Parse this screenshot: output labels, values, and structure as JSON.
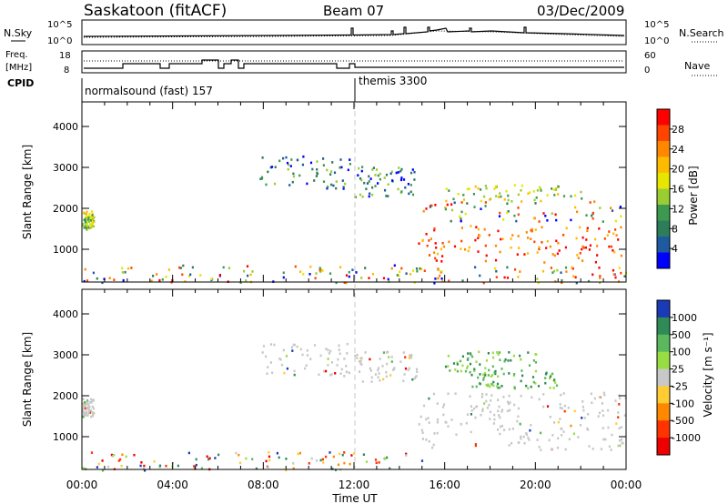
{
  "header": {
    "station": "Saskatoon (fitACF)",
    "beam": "Beam 07",
    "date": "03/Dec/2009"
  },
  "top_panels": {
    "nsky_label": "N.Sky",
    "nsearch_label": "N.Search",
    "nsky_ticks": [
      "10^5",
      "10^0"
    ],
    "nsearch_ticks": [
      "10^5",
      "10^0"
    ],
    "freq_label_1": "Freq.",
    "freq_label_2": "[MHz]",
    "freq_ticks": [
      "18",
      "8"
    ],
    "nave_label": "Nave",
    "nave_ticks": [
      "60",
      "0"
    ],
    "cpid_label": "CPID",
    "cpid_1": "normalsound (fast) 157",
    "cpid_2": "themis 3300"
  },
  "chart_data": [
    {
      "type": "heatmap",
      "name": "power",
      "ylabel": "Slant Range [km]",
      "ylim": [
        200,
        4600
      ],
      "y_ticks": [
        "4000",
        "3000",
        "2000",
        "1000"
      ],
      "xlabel": "Time UT",
      "x_ticks": [
        "00:00",
        "04:00",
        "08:00",
        "12:00",
        "16:00",
        "20:00",
        "00:00"
      ],
      "colorbar": {
        "label": "Power [dB]",
        "ticks": [
          "28",
          "24",
          "20",
          "16",
          "12",
          "8",
          "4"
        ],
        "colors": [
          "#ff0000",
          "#ff4400",
          "#ff8800",
          "#ffbb00",
          "#e6e600",
          "#9acd32",
          "#3d9950",
          "#2e7d5a",
          "#1e5aa0",
          "#0000ff"
        ]
      },
      "regions": [
        {
          "t0": 0.0,
          "t1": 0.5,
          "r0": 1500,
          "r1": 1950,
          "level": "mid"
        },
        {
          "t0": 0.0,
          "t1": 15.0,
          "r0": 200,
          "r1": 650,
          "level": "mixed"
        },
        {
          "t0": 7.8,
          "t1": 11.8,
          "r0": 2500,
          "r1": 3300,
          "level": "low"
        },
        {
          "t0": 12.0,
          "t1": 14.8,
          "r0": 2300,
          "r1": 3100,
          "level": "low"
        },
        {
          "t0": 14.8,
          "t1": 24.0,
          "r0": 700,
          "r1": 1600,
          "level": "high"
        },
        {
          "t0": 15.0,
          "t1": 24.0,
          "r0": 1700,
          "r1": 2200,
          "level": "mixed"
        },
        {
          "t0": 16.0,
          "t1": 22.0,
          "r0": 2200,
          "r1": 2600,
          "level": "mid"
        },
        {
          "t0": 14.5,
          "t1": 24.0,
          "r0": 200,
          "r1": 600,
          "level": "mixed"
        }
      ]
    },
    {
      "type": "heatmap",
      "name": "velocity",
      "ylabel": "Slant Range [km]",
      "ylim": [
        200,
        4600
      ],
      "y_ticks": [
        "4000",
        "3000",
        "2000",
        "1000"
      ],
      "xlabel": "Time UT",
      "x_ticks": [
        "00:00",
        "04:00",
        "08:00",
        "12:00",
        "16:00",
        "20:00",
        "00:00"
      ],
      "colorbar": {
        "label": "Velocity [m s⁻¹]",
        "ticks": [
          "1000",
          "500",
          "100",
          "25",
          "-25",
          "-100",
          "-500",
          "-1000"
        ],
        "colors": [
          "#1a3ab8",
          "#2e8b57",
          "#5cb85c",
          "#99dd44",
          "#c8c8c8",
          "#ffcc33",
          "#ff8800",
          "#ff3300",
          "#ee0000"
        ]
      },
      "regions": [
        {
          "t0": 0.0,
          "t1": 0.5,
          "r0": 1500,
          "r1": 1950,
          "level": "gray"
        },
        {
          "t0": 0.0,
          "t1": 15.0,
          "r0": 200,
          "r1": 650,
          "level": "mixed"
        },
        {
          "t0": 7.8,
          "t1": 11.8,
          "r0": 2500,
          "r1": 3300,
          "level": "gray"
        },
        {
          "t0": 12.0,
          "t1": 14.8,
          "r0": 2300,
          "r1": 3100,
          "level": "gray"
        },
        {
          "t0": 14.8,
          "t1": 24.0,
          "r0": 700,
          "r1": 1700,
          "level": "gray"
        },
        {
          "t0": 17.0,
          "t1": 21.0,
          "r0": 2200,
          "r1": 2600,
          "level": "green"
        },
        {
          "t0": 15.0,
          "t1": 24.0,
          "r0": 1700,
          "r1": 2100,
          "level": "gray"
        },
        {
          "t0": 16.0,
          "t1": 20.0,
          "r0": 2600,
          "r1": 3100,
          "level": "green"
        }
      ]
    }
  ]
}
